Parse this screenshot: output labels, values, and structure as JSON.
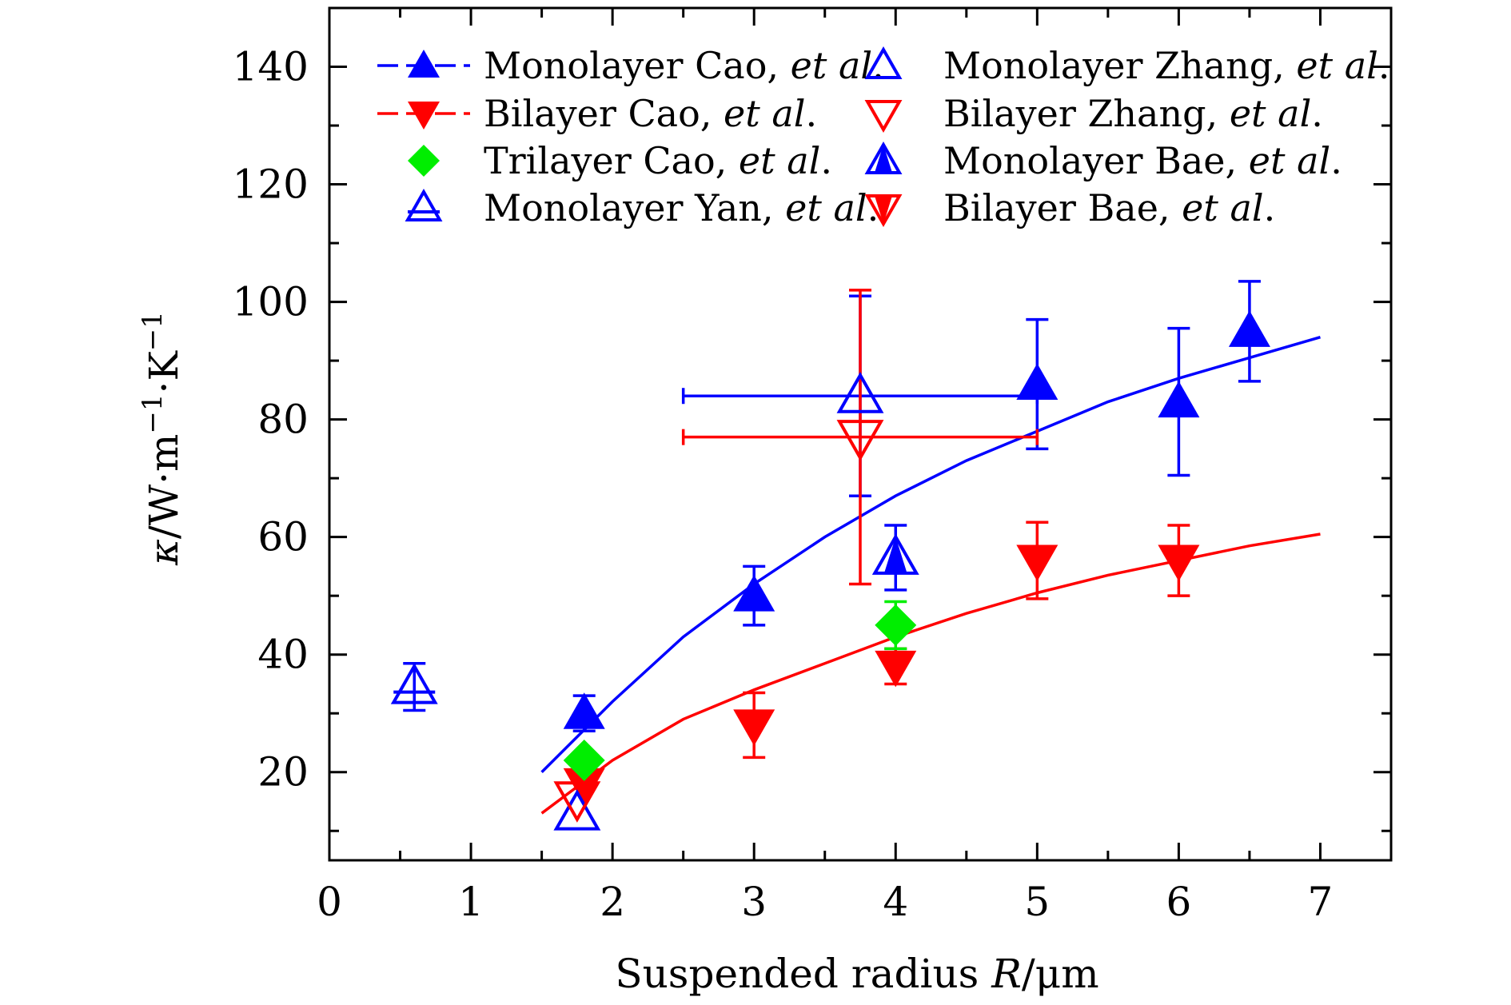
{
  "chart_data": {
    "type": "scatter",
    "title": "",
    "xlabel": "Suspended radius R/μm",
    "ylabel": "κ/W·m⁻¹·K⁻¹",
    "xlim": [
      0,
      7.5
    ],
    "ylim": [
      5,
      150
    ],
    "x_ticks": [
      0,
      1,
      2,
      3,
      4,
      5,
      6,
      7
    ],
    "y_ticks": [
      20,
      40,
      60,
      80,
      100,
      120,
      140
    ],
    "grid": false,
    "legend_position": "top",
    "colors": {
      "blue": "#0000ff",
      "red": "#ff0000",
      "green": "#00ee00"
    },
    "series": [
      {
        "name": "Monolayer Cao, et al.",
        "marker": "triangle-up-filled",
        "color": "#0000ff",
        "points": [
          {
            "x": 1.8,
            "y": 30,
            "err": 3
          },
          {
            "x": 3.0,
            "y": 50,
            "err": 5
          },
          {
            "x": 5.0,
            "y": 86,
            "err": 11
          },
          {
            "x": 6.0,
            "y": 83,
            "err": 12.5
          },
          {
            "x": 6.5,
            "y": 95,
            "err": 8.5
          }
        ],
        "fit": {
          "x": [
            1.5,
            2.0,
            2.5,
            3.0,
            3.5,
            4.0,
            4.5,
            5.0,
            5.5,
            6.0,
            6.5,
            7.0
          ],
          "y": [
            20,
            32,
            43,
            52,
            60,
            67,
            73,
            78,
            83,
            87,
            90.5,
            94
          ]
        }
      },
      {
        "name": "Bilayer Cao, et al.",
        "marker": "triangle-down-filled",
        "color": "#ff0000",
        "points": [
          {
            "x": 1.8,
            "y": 18
          },
          {
            "x": 3.0,
            "y": 28,
            "err": 5.5
          },
          {
            "x": 4.0,
            "y": 38,
            "err": 3
          },
          {
            "x": 5.0,
            "y": 56,
            "err": 6.5
          },
          {
            "x": 6.0,
            "y": 56,
            "err": 6
          }
        ],
        "fit": {
          "x": [
            1.5,
            2.0,
            2.5,
            3.0,
            3.5,
            4.0,
            4.5,
            5.0,
            5.5,
            6.0,
            6.5,
            7.0
          ],
          "y": [
            13,
            22,
            29,
            34,
            38.5,
            43,
            47,
            50.5,
            53.5,
            56,
            58.5,
            60.5
          ]
        }
      },
      {
        "name": "Trilayer Cao, et al.",
        "marker": "diamond-filled",
        "color": "#00ee00",
        "points": [
          {
            "x": 1.8,
            "y": 22
          },
          {
            "x": 4.0,
            "y": 45,
            "err": 4
          }
        ]
      },
      {
        "name": "Monolayer Yan, et al.",
        "marker": "triangle-up-open-bar",
        "color": "#0000ff",
        "points": [
          {
            "x": 0.6,
            "y": 34.5,
            "err": 4
          }
        ]
      },
      {
        "name": "Monolayer Zhang, et al.",
        "marker": "triangle-up-open",
        "color": "#0000ff",
        "points": [
          {
            "x": 3.75,
            "y": 84,
            "err": 17,
            "xerr": [
              1.25,
              1.25
            ]
          },
          {
            "x": 1.75,
            "y": 13
          }
        ]
      },
      {
        "name": "Bilayer Zhang, et al.",
        "marker": "triangle-down-open",
        "color": "#ff0000",
        "points": [
          {
            "x": 3.75,
            "y": 77,
            "err": 25,
            "xerr": [
              1.25,
              1.25
            ]
          },
          {
            "x": 1.75,
            "y": 15.5
          }
        ]
      },
      {
        "name": "Monolayer Bae, et al.",
        "marker": "triangle-up-half",
        "color": "#0000ff",
        "points": [
          {
            "x": 4.0,
            "y": 56.5,
            "err": 5.5
          }
        ]
      },
      {
        "name": "Bilayer Bae, et al.",
        "marker": "triangle-down-half",
        "color": "#ff0000",
        "points": []
      }
    ],
    "legend": [
      {
        "label_main": "Monolayer Cao, ",
        "label_em": "et al",
        "label_end": ".",
        "series": 0,
        "line": true
      },
      {
        "label_main": "Monolayer Zhang, ",
        "label_em": "et al",
        "label_end": ".",
        "series": 4,
        "line": false
      },
      {
        "label_main": "Bilayer Cao, ",
        "label_em": "et al",
        "label_end": ".",
        "series": 1,
        "line": true
      },
      {
        "label_main": "Bilayer Zhang, ",
        "label_em": "et al",
        "label_end": ".",
        "series": 5,
        "line": false
      },
      {
        "label_main": "Trilayer Cao, ",
        "label_em": "et al",
        "label_end": ".",
        "series": 2,
        "line": false
      },
      {
        "label_main": "Monolayer Bae, ",
        "label_em": "et al",
        "label_end": ".",
        "series": 6,
        "line": false
      },
      {
        "label_main": "Monolayer Yan, ",
        "label_em": "et al",
        "label_end": ".",
        "series": 3,
        "line": false
      },
      {
        "label_main": "Bilayer Bae, ",
        "label_em": "et al",
        "label_end": ".",
        "series": 7,
        "line": false
      }
    ]
  }
}
